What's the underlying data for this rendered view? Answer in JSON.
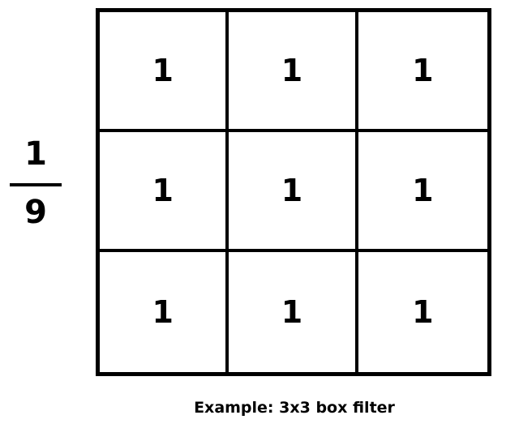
{
  "fraction": {
    "numerator": "1",
    "denominator": "9"
  },
  "grid": {
    "rows": [
      [
        "1",
        "1",
        "1"
      ],
      [
        "1",
        "1",
        "1"
      ],
      [
        "1",
        "1",
        "1"
      ]
    ]
  },
  "caption": "Example: 3x3 box filter",
  "colors": {
    "line": "#000000",
    "background": "#ffffff"
  }
}
